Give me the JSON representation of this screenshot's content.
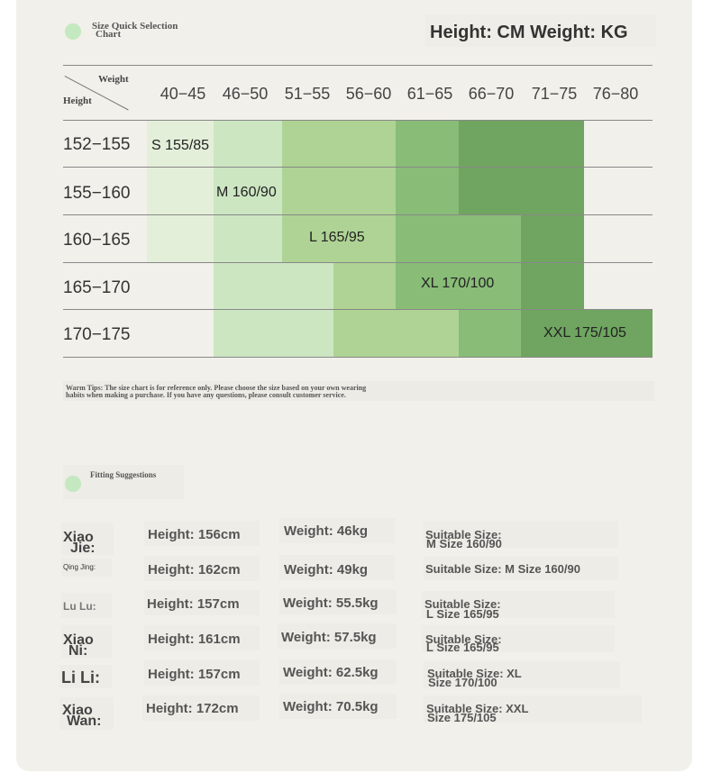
{
  "chart_title": [
    "Size Quick Selection",
    "Chart"
  ],
  "units_title": "Height: CM Weight: KG",
  "table": {
    "corner_weight": "Weight",
    "corner_height": "Height",
    "weights": [
      "40−45",
      "46−50",
      "51−55",
      "56−60",
      "61−65",
      "66−70",
      "71−75",
      "76−80"
    ],
    "heights": [
      "152−155",
      "155−160",
      "160−165",
      "165−170",
      "170−175"
    ],
    "size_labels": [
      "S 155/85",
      "M 160/90",
      "L 165/95",
      "XL 170/100",
      "XXL 175/105"
    ]
  },
  "tips": [
    "Warm Tips: The size chart is for reference only. Please choose the size based on your own wearing",
    " habits when making a purchase. If you have any questions, please consult customer service."
  ],
  "fitting": {
    "title": "Fitting Suggestions",
    "rows": [
      {
        "name": [
          "Xiao",
          "Jie:"
        ],
        "height": "Height: 156cm",
        "weight": "Weight: 46kg",
        "size": [
          "Suitable Size:",
          " M Size 160/90"
        ]
      },
      {
        "name": [
          "Qing Jing:"
        ],
        "height": "Height: 162cm",
        "weight": "Weight: 49kg",
        "size": [
          "Suitable Size: M Size 160/90"
        ]
      },
      {
        "name": [
          "Lu Lu:"
        ],
        "height": "Height: 157cm",
        "weight": "Weight: 55.5kg",
        "size": [
          "Suitable Size:",
          " L Size 165/95"
        ]
      },
      {
        "name": [
          "Xiao",
          "Ni:"
        ],
        "height": "Height: 161cm",
        "weight": "Weight: 57.5kg",
        "size": [
          "Suitable Size:",
          " L Size 165/95"
        ]
      },
      {
        "name": [
          "Li Li:"
        ],
        "height": "Height: 157cm",
        "weight": "Weight: 62.5kg",
        "size": [
          "Suitable Size: XL",
          " Size 170/100"
        ]
      },
      {
        "name": [
          "Xiao",
          "Wan:"
        ],
        "height": "Height: 172cm",
        "weight": "Weight: 70.5kg",
        "size": [
          "Suitable Size: XXL",
          " Size 175/105"
        ]
      }
    ]
  }
}
